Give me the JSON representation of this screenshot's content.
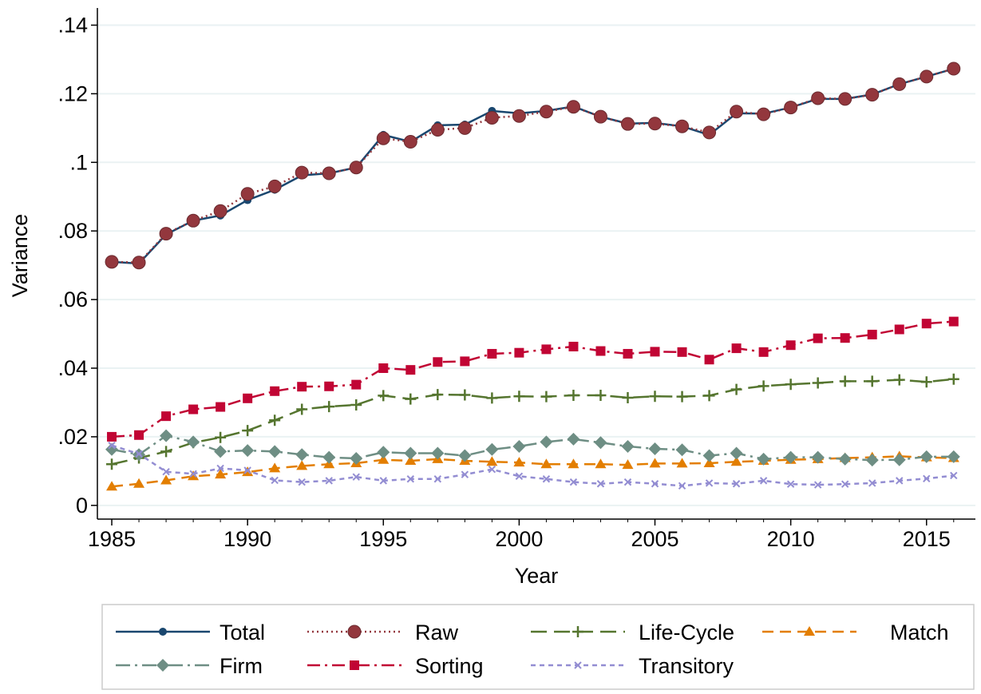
{
  "chart_data": {
    "type": "line",
    "x_label": "Year",
    "y_label": "Variance",
    "x": [
      1985,
      1986,
      1987,
      1988,
      1989,
      1990,
      1991,
      1992,
      1993,
      1994,
      1995,
      1996,
      1997,
      1998,
      1999,
      2000,
      2001,
      2002,
      2003,
      2004,
      2005,
      2006,
      2007,
      2008,
      2009,
      2010,
      2011,
      2012,
      2013,
      2014,
      2015,
      2016
    ],
    "xlim": [
      1984.47,
      2016.8
    ],
    "xticks": [
      1985,
      1990,
      1995,
      2000,
      2005,
      2010,
      2015
    ],
    "ylim": [
      -0.004,
      0.145
    ],
    "yticks": [
      0,
      {
        "value": 0.02,
        "label": ".02"
      },
      {
        "value": 0.04,
        "label": ".04"
      },
      {
        "value": 0.06,
        "label": ".06"
      },
      {
        "value": 0.08,
        "label": ".08"
      },
      {
        "value": 0.1,
        "label": ".1"
      },
      {
        "value": 0.12,
        "label": ".12"
      },
      {
        "value": 0.14,
        "label": ".14"
      }
    ],
    "grid": true,
    "legend": "bottom",
    "series": [
      {
        "name": "Total",
        "color": "#1a476f",
        "marker": "circle",
        "dash": "solid",
        "values": [
          0.071,
          0.0705,
          0.079,
          0.083,
          0.0845,
          0.089,
          0.092,
          0.0962,
          0.0968,
          0.0985,
          0.108,
          0.106,
          0.1108,
          0.111,
          0.115,
          0.1143,
          0.115,
          0.1163,
          0.1133,
          0.1113,
          0.1115,
          0.1105,
          0.108,
          0.1143,
          0.1142,
          0.116,
          0.1185,
          0.1185,
          0.1198,
          0.1228,
          0.125,
          0.1273
        ]
      },
      {
        "name": "Raw",
        "color": "#93373d",
        "marker": "bigcircle",
        "dash": "dot",
        "values": [
          0.071,
          0.0708,
          0.0792,
          0.083,
          0.0858,
          0.0908,
          0.093,
          0.097,
          0.0968,
          0.0985,
          0.107,
          0.106,
          0.1095,
          0.11,
          0.113,
          0.1135,
          0.1148,
          0.1162,
          0.1133,
          0.1112,
          0.1113,
          0.1105,
          0.1087,
          0.1148,
          0.114,
          0.116,
          0.1187,
          0.1185,
          0.1197,
          0.1228,
          0.125,
          0.1273
        ]
      },
      {
        "name": "Life-Cycle",
        "color": "#55752f",
        "marker": "plus",
        "dash": "longdash",
        "values": [
          0.012,
          0.0138,
          0.0157,
          0.0183,
          0.0198,
          0.0218,
          0.0248,
          0.028,
          0.0288,
          0.0293,
          0.032,
          0.031,
          0.0323,
          0.0322,
          0.0313,
          0.0318,
          0.0317,
          0.0321,
          0.0321,
          0.0314,
          0.0318,
          0.0317,
          0.032,
          0.0338,
          0.0348,
          0.0353,
          0.0357,
          0.0362,
          0.0362,
          0.0366,
          0.036,
          0.0368
        ]
      },
      {
        "name": "Match",
        "color": "#e37e00",
        "marker": "triangle",
        "dash": "dash",
        "values": [
          0.0055,
          0.0063,
          0.0073,
          0.0085,
          0.009,
          0.0097,
          0.0108,
          0.0115,
          0.012,
          0.0123,
          0.0133,
          0.013,
          0.0135,
          0.013,
          0.0127,
          0.0125,
          0.012,
          0.012,
          0.012,
          0.0118,
          0.0122,
          0.0122,
          0.0123,
          0.0127,
          0.013,
          0.0133,
          0.0135,
          0.0138,
          0.014,
          0.0143,
          0.014,
          0.0138
        ]
      },
      {
        "name": "Firm",
        "color": "#6e8e84",
        "marker": "diamond",
        "dash": "dashdot",
        "values": [
          0.0163,
          0.0148,
          0.0203,
          0.0185,
          0.0157,
          0.016,
          0.0157,
          0.0148,
          0.014,
          0.0137,
          0.0155,
          0.0152,
          0.0152,
          0.0145,
          0.0163,
          0.0172,
          0.0185,
          0.0193,
          0.0183,
          0.0172,
          0.0165,
          0.0162,
          0.0145,
          0.0152,
          0.0135,
          0.014,
          0.014,
          0.0135,
          0.0132,
          0.0133,
          0.0142,
          0.0142
        ]
      },
      {
        "name": "Sorting",
        "color": "#c10534",
        "marker": "square",
        "dash": "longdashdot",
        "values": [
          0.02,
          0.0205,
          0.026,
          0.028,
          0.0287,
          0.0312,
          0.0333,
          0.0346,
          0.0347,
          0.0352,
          0.04,
          0.0395,
          0.0418,
          0.042,
          0.0442,
          0.0445,
          0.0455,
          0.0463,
          0.045,
          0.0442,
          0.0448,
          0.0447,
          0.0425,
          0.0458,
          0.0447,
          0.0467,
          0.0487,
          0.0488,
          0.0498,
          0.0513,
          0.053,
          0.0536
        ]
      },
      {
        "name": "Transitory",
        "color": "#938dd2",
        "marker": "x",
        "dash": "shortdash",
        "values": [
          0.0175,
          0.015,
          0.0098,
          0.0092,
          0.0108,
          0.0102,
          0.0073,
          0.0068,
          0.0072,
          0.0083,
          0.0072,
          0.0077,
          0.0077,
          0.009,
          0.0105,
          0.0085,
          0.0077,
          0.0068,
          0.0063,
          0.0068,
          0.0063,
          0.0057,
          0.0065,
          0.0063,
          0.0072,
          0.0062,
          0.006,
          0.0062,
          0.0065,
          0.0072,
          0.0078,
          0.0087
        ]
      }
    ]
  }
}
